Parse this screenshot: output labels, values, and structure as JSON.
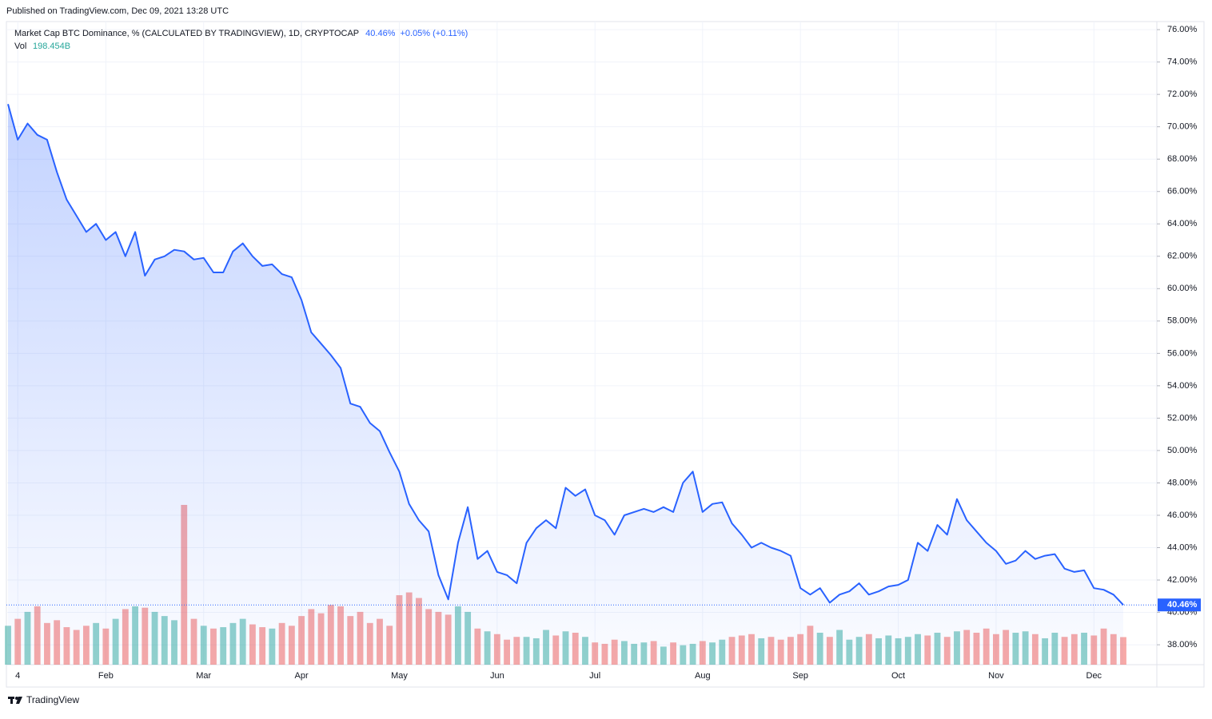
{
  "header": {
    "published": "Published on TradingView.com, Dec 09, 2021 13:28 UTC",
    "brand": "TradingView"
  },
  "chart_data": {
    "type": "line",
    "title": "Market Cap BTC Dominance, % (CALCULATED BY TRADINGVIEW), 1D, CRYPTOCAP",
    "last": {
      "value": 40.46,
      "label": "40.46%",
      "change": "+0.05% (+0.11%)"
    },
    "volume_title": "Vol",
    "volume_label": {
      "value": 198.454,
      "label": "198.454B"
    },
    "categories": [
      null,
      "4",
      null,
      null,
      null,
      null,
      null,
      null,
      null,
      null,
      "Feb",
      null,
      null,
      null,
      null,
      null,
      null,
      null,
      null,
      null,
      "Mar",
      null,
      null,
      null,
      null,
      null,
      null,
      null,
      null,
      null,
      "Apr",
      null,
      null,
      null,
      null,
      null,
      null,
      null,
      null,
      null,
      "May",
      null,
      null,
      null,
      null,
      null,
      null,
      null,
      null,
      null,
      "Jun",
      null,
      null,
      null,
      null,
      null,
      null,
      null,
      null,
      null,
      "Jul",
      null,
      null,
      null,
      null,
      null,
      null,
      null,
      null,
      null,
      null,
      "Aug",
      null,
      null,
      null,
      null,
      null,
      null,
      null,
      null,
      null,
      "Sep",
      null,
      null,
      null,
      null,
      null,
      null,
      null,
      null,
      null,
      "Oct",
      null,
      null,
      null,
      null,
      null,
      null,
      null,
      null,
      null,
      "Nov",
      null,
      null,
      null,
      null,
      null,
      null,
      null,
      null,
      null,
      "Dec",
      null,
      null,
      null
    ],
    "series": [
      {
        "name": "BTC Dominance",
        "color": "#2962ff",
        "values": [
          71.4,
          69.2,
          70.2,
          69.5,
          69.2,
          67.2,
          65.5,
          64.5,
          63.5,
          64.0,
          63.0,
          63.5,
          62.0,
          63.5,
          60.8,
          61.8,
          62.0,
          62.4,
          62.3,
          61.8,
          61.9,
          61.0,
          61.0,
          62.3,
          62.8,
          62.0,
          61.4,
          61.5,
          60.9,
          60.7,
          59.3,
          57.3,
          56.6,
          55.9,
          55.1,
          52.9,
          52.7,
          51.7,
          51.2,
          49.9,
          48.7,
          46.7,
          45.7,
          45.0,
          42.3,
          40.8,
          44.3,
          46.5,
          43.3,
          43.8,
          42.5,
          42.3,
          41.8,
          44.3,
          45.2,
          45.7,
          45.2,
          47.7,
          47.2,
          47.6,
          46.0,
          45.7,
          44.8,
          46.0,
          46.2,
          46.4,
          46.2,
          46.5,
          46.2,
          48.0,
          48.7,
          46.2,
          46.7,
          46.8,
          45.5,
          44.8,
          44.0,
          44.3,
          44.0,
          43.8,
          43.5,
          41.5,
          41.1,
          41.5,
          40.6,
          41.1,
          41.3,
          41.8,
          41.1,
          41.3,
          41.6,
          41.7,
          42.0,
          44.3,
          43.8,
          45.4,
          44.8,
          47.0,
          45.7,
          45.0,
          44.3,
          43.8,
          43.0,
          43.2,
          43.8,
          43.3,
          43.5,
          43.6,
          42.7,
          42.5,
          42.6,
          41.5,
          41.4,
          41.1,
          40.46
        ]
      },
      {
        "name": "Vol",
        "type": "bar",
        "up_color": "rgba(38,166,154,0.5)",
        "down_color": "rgba(239,83,80,0.5)",
        "values": [
          280,
          330,
          380,
          420,
          300,
          320,
          270,
          250,
          280,
          300,
          260,
          330,
          400,
          420,
          410,
          380,
          350,
          320,
          1150,
          330,
          280,
          260,
          270,
          300,
          330,
          290,
          270,
          260,
          300,
          280,
          350,
          400,
          370,
          430,
          420,
          350,
          380,
          300,
          330,
          280,
          500,
          520,
          480,
          400,
          380,
          360,
          420,
          380,
          260,
          240,
          220,
          180,
          200,
          200,
          190,
          250,
          210,
          240,
          230,
          200,
          160,
          150,
          180,
          170,
          150,
          160,
          170,
          130,
          160,
          140,
          150,
          170,
          160,
          180,
          200,
          210,
          220,
          190,
          200,
          180,
          200,
          220,
          280,
          230,
          200,
          250,
          180,
          200,
          220,
          190,
          210,
          190,
          200,
          220,
          210,
          230,
          200,
          240,
          250,
          230,
          260,
          220,
          250,
          230,
          240,
          220,
          190,
          230,
          200,
          220,
          230,
          210,
          260,
          220,
          198.454
        ]
      }
    ],
    "ylim": [
      36.77,
      76.35
    ],
    "yticks": [
      {
        "value": 38,
        "label": "38.00%"
      },
      {
        "value": 40,
        "label": "40.00%"
      },
      {
        "value": 42,
        "label": "42.00%"
      },
      {
        "value": 44,
        "label": "44.00%"
      },
      {
        "value": 46,
        "label": "46.00%"
      },
      {
        "value": 48,
        "label": "48.00%"
      },
      {
        "value": 50,
        "label": "50.00%"
      },
      {
        "value": 52,
        "label": "52.00%"
      },
      {
        "value": 54,
        "label": "54.00%"
      },
      {
        "value": 56,
        "label": "56.00%"
      },
      {
        "value": 58,
        "label": "58.00%"
      },
      {
        "value": 60,
        "label": "60.00%"
      },
      {
        "value": 62,
        "label": "62.00%"
      },
      {
        "value": 64,
        "label": "64.00%"
      },
      {
        "value": 66,
        "label": "66.00%"
      },
      {
        "value": 68,
        "label": "68.00%"
      },
      {
        "value": 70,
        "label": "70.00%"
      },
      {
        "value": 72,
        "label": "72.00%"
      },
      {
        "value": 74,
        "label": "74.00%"
      },
      {
        "value": 76,
        "label": "76.00%"
      }
    ],
    "grid": true
  }
}
